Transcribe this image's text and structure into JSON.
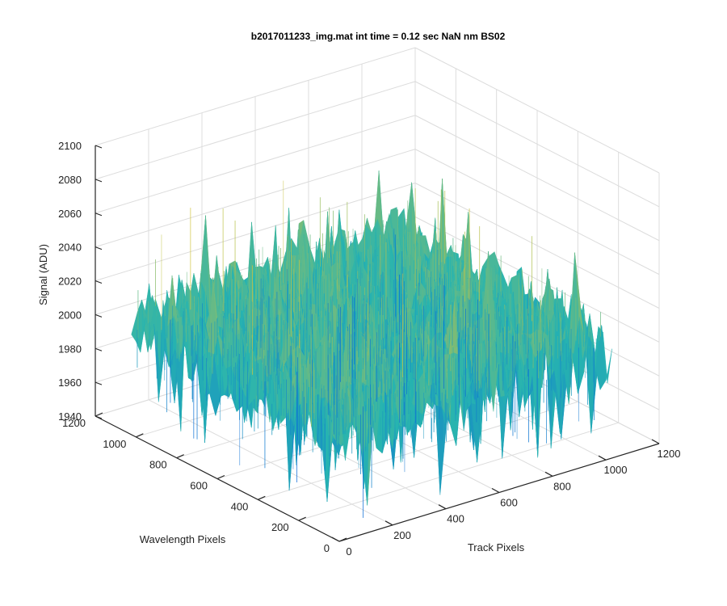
{
  "chart_data": {
    "type": "surface",
    "title": "b2017011233_img.mat int time = 0.12 sec  NaN nm BS02",
    "xlabel": "Track Pixels",
    "ylabel": "Wavelength Pixels",
    "zlabel": "Signal (ADU)",
    "xlim": [
      0,
      1200
    ],
    "ylim": [
      0,
      1200
    ],
    "zlim": [
      1940,
      2100
    ],
    "x_ticks": [
      "0",
      "200",
      "400",
      "600",
      "800",
      "1000",
      "1200"
    ],
    "y_ticks": [
      "0",
      "200",
      "400",
      "600",
      "800",
      "1000",
      "1200"
    ],
    "z_ticks": [
      "1940",
      "1960",
      "1980",
      "2000",
      "2020",
      "2040",
      "2060",
      "2080",
      "2100"
    ],
    "x_data_range": [
      1,
      1024
    ],
    "y_data_range": [
      1,
      1024
    ],
    "grid": true,
    "colormap": "parula",
    "surface_mean": 2005,
    "surface_typical_min": 1975,
    "surface_typical_max": 2035,
    "surface_min": 1945,
    "surface_max": 2070,
    "colors": {
      "low": "#0a6ad8",
      "mid": "#27b4b0",
      "high": "#d8c53a",
      "axis": "#262626",
      "grid": "#dcdcdc"
    }
  }
}
